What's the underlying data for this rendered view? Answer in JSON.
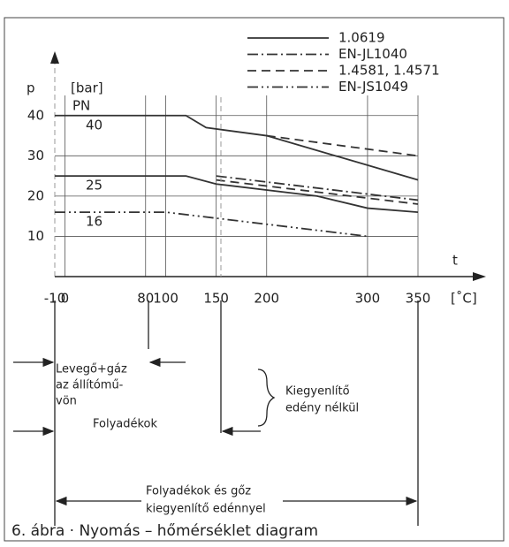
{
  "chart_data": {
    "type": "line",
    "y_label": "p",
    "y_unit": "[bar]",
    "x_label": "t",
    "x_unit": "[˚C]",
    "pn_label": "PN",
    "pn_classes": [
      40,
      25,
      16
    ],
    "xlim": [
      -10,
      350
    ],
    "xticks": [
      -10,
      0,
      80,
      100,
      150,
      200,
      300,
      350
    ],
    "ylim": [
      0,
      45
    ],
    "yticks": [
      10,
      20,
      30,
      40
    ],
    "grid": true,
    "series": [
      {
        "name": "1.0619",
        "color": "#333333",
        "style": "solid",
        "x": [
          -10,
          120,
          140,
          200,
          350,
          null,
          -10,
          120,
          150,
          250,
          300,
          350
        ],
        "values": [
          40,
          40,
          37,
          35,
          24,
          null,
          25,
          25,
          23,
          20,
          17,
          16
        ]
      },
      {
        "name": "EN-JL1040",
        "color": "#333333",
        "style": "dashdot",
        "x": [
          150,
          350
        ],
        "values": [
          25,
          19
        ]
      },
      {
        "name": "1.4581, 1.4571",
        "color": "#333333",
        "style": "dashed",
        "x": [
          200,
          350,
          null,
          150,
          350
        ],
        "values": [
          35,
          30,
          null,
          24,
          18
        ]
      },
      {
        "name": "EN-JS1049",
        "color": "#333333",
        "style": "dashdotdot",
        "x": [
          -10,
          100,
          300
        ],
        "values": [
          16,
          16,
          10
        ]
      }
    ]
  },
  "annotations": {
    "gas": [
      "Levegő+gáz",
      "az állítómű-",
      "vön"
    ],
    "no_tank": [
      "Kiegyenlítő",
      "edény nélkül"
    ],
    "liquids": "Folyadékok",
    "with_tank": [
      "Folyadékok és gőz",
      "kiegyenlítő edénnyel"
    ]
  },
  "caption": "6. ábra · Nyomás – hőmérséklet diagram"
}
